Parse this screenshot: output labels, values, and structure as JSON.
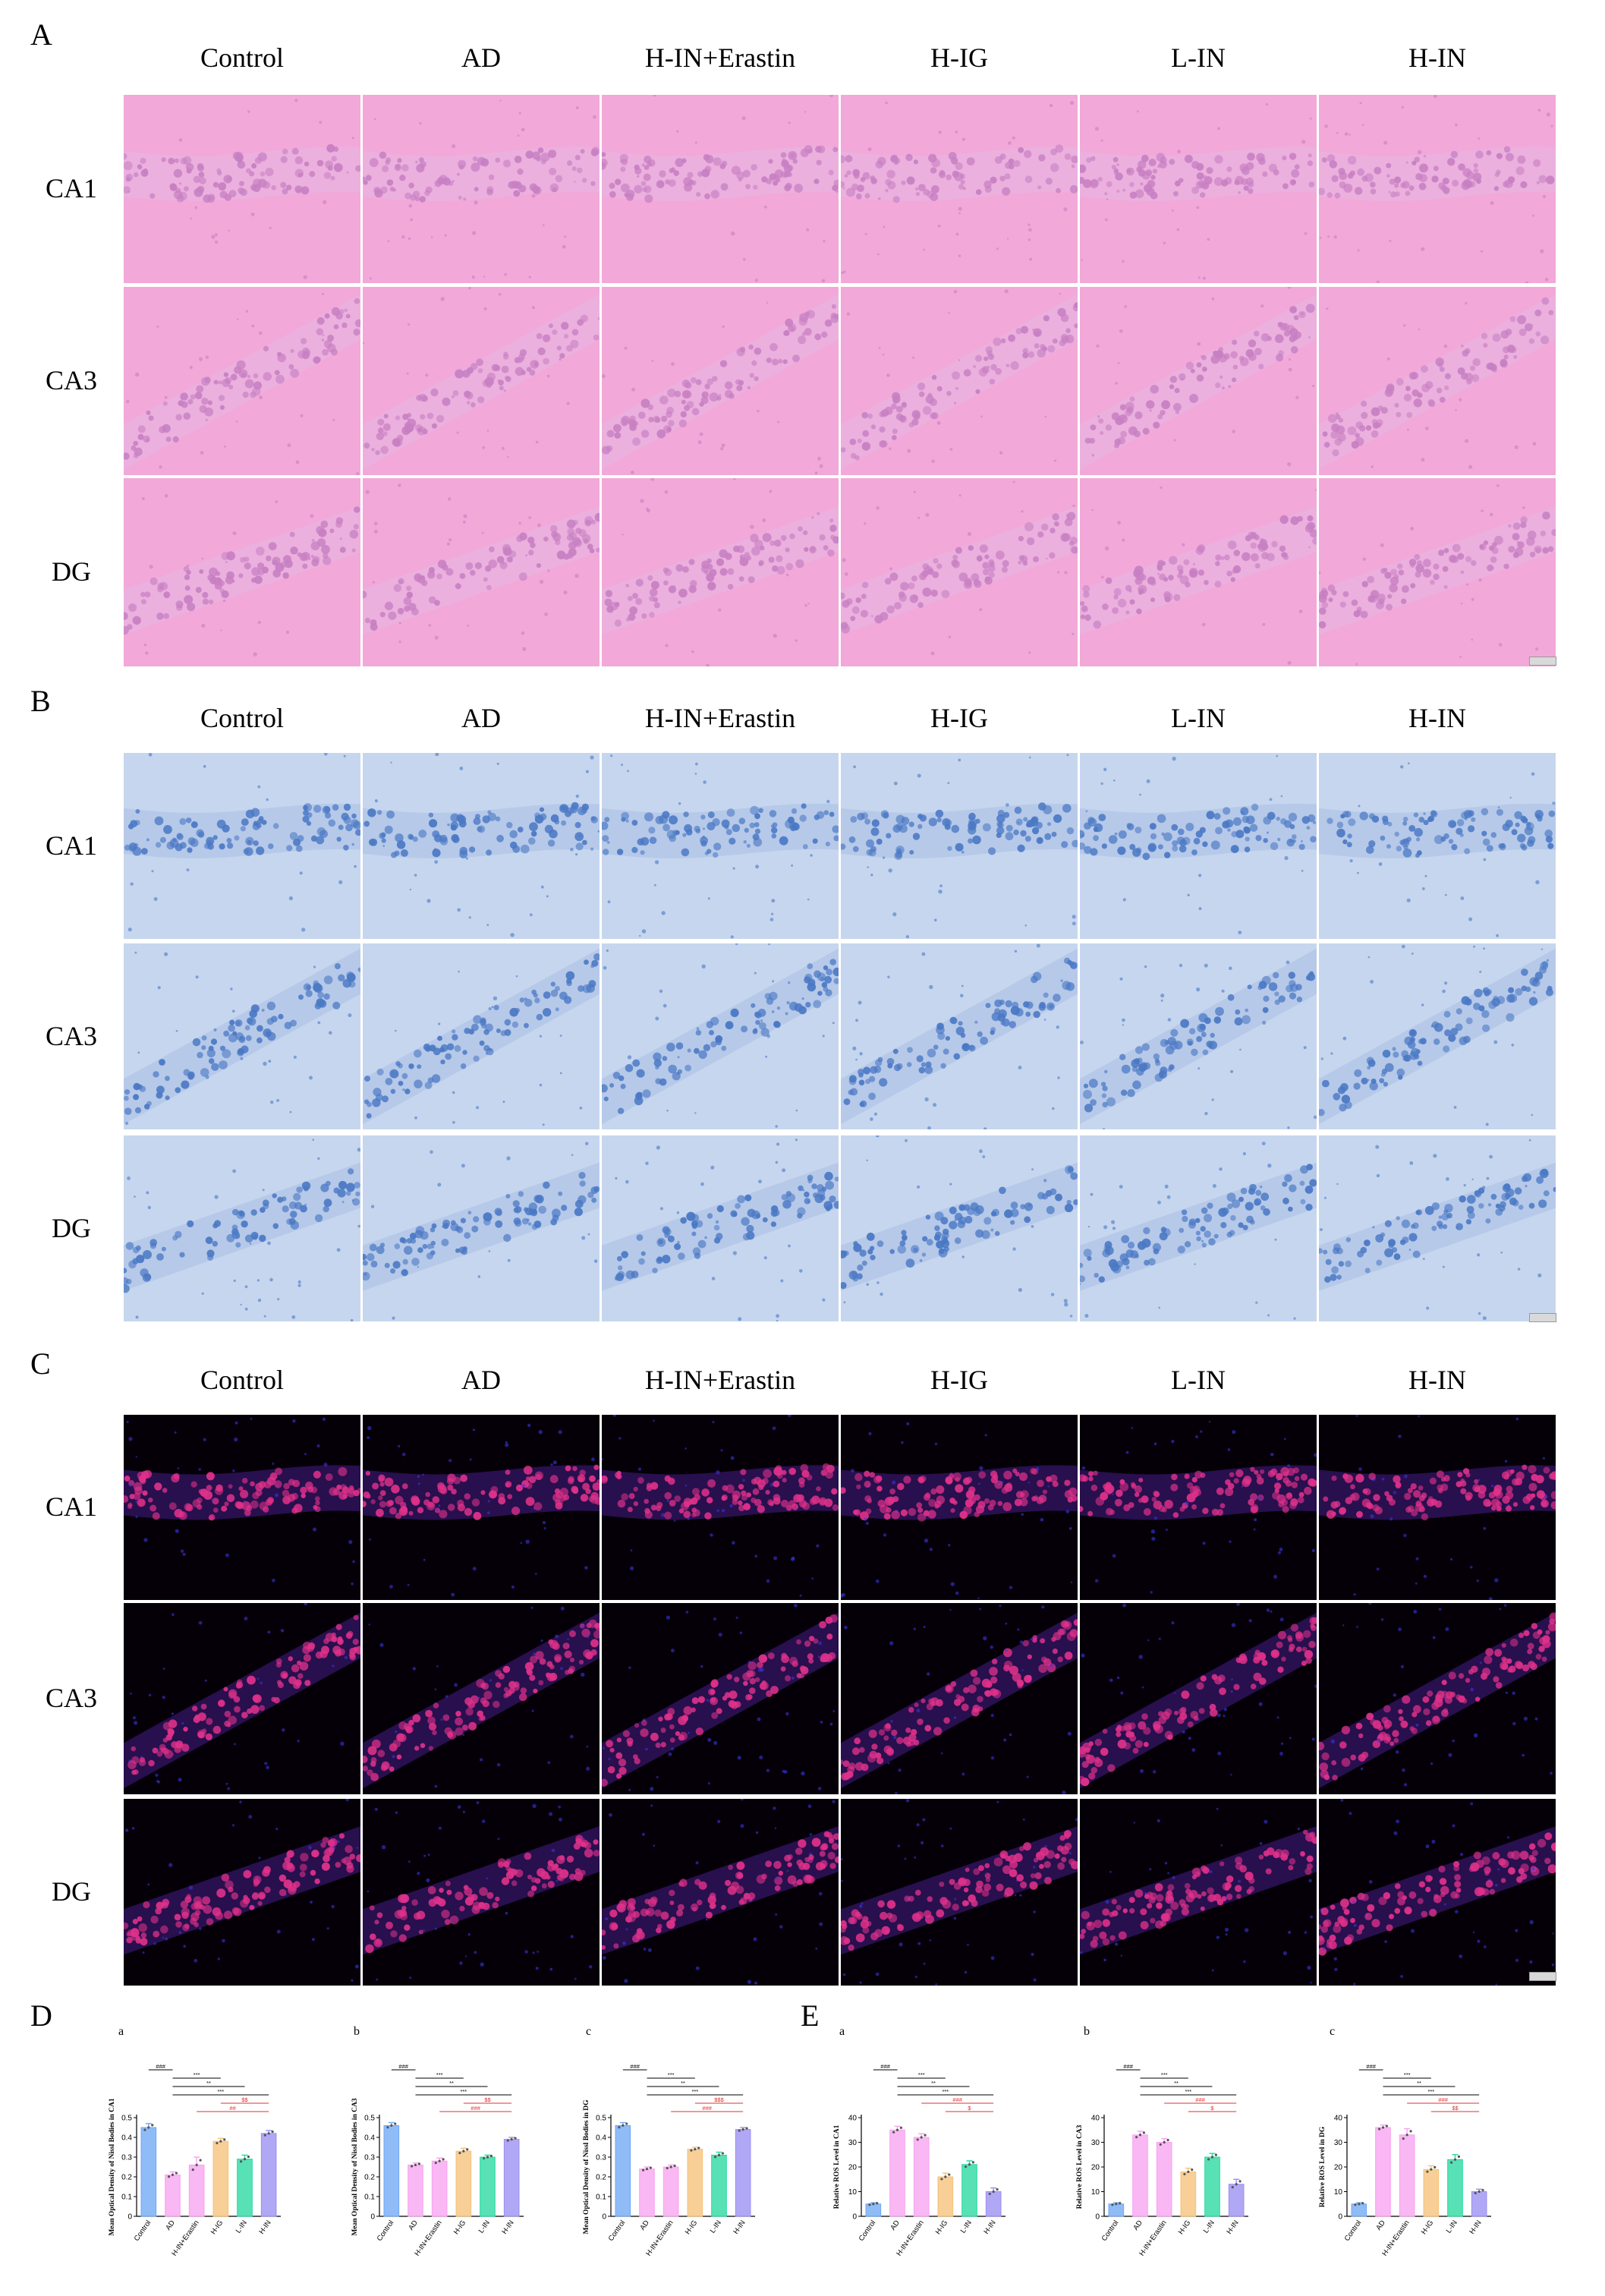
{
  "figure": {
    "panels": [
      {
        "letter": "A",
        "stain": "he"
      },
      {
        "letter": "B",
        "stain": "nissl"
      },
      {
        "letter": "C",
        "stain": "ros"
      }
    ],
    "columns": [
      "Control",
      "AD",
      "H-IN+Erastin",
      "H-IG",
      "L-IN",
      "H-IN"
    ],
    "rows": [
      "CA1",
      "CA3",
      "DG"
    ],
    "colors": {
      "he_bg": "#f2a8d8",
      "he_cell": "#c77fc2",
      "nissl_bg": "#c6d6ee",
      "nissl_cell": "#4a78c4",
      "ros_bg": "#050008",
      "ros_cell": "#e0318a"
    }
  },
  "panel_d": {
    "letter": "D",
    "charts": [
      {
        "sub": "a",
        "ylabel": "Mean Optical Density of Nissl Bodies in CA1"
      },
      {
        "sub": "b",
        "ylabel": "Mean Optical Density of Nissl Bodies in CA3"
      },
      {
        "sub": "c",
        "ylabel": "Mean Optical Density of Nissl Bodies in DG"
      }
    ]
  },
  "panel_e": {
    "letter": "E",
    "charts": [
      {
        "sub": "a",
        "ylabel": "Relative ROS Level in CA1"
      },
      {
        "sub": "b",
        "ylabel": "Relative ROS Level in CA3"
      },
      {
        "sub": "c",
        "ylabel": "Relative ROS Level in DG"
      }
    ]
  },
  "bar_colors": [
    "#6fa8f5",
    "#f7a3f0",
    "#f7a3f0",
    "#f5c27a",
    "#28d8a0",
    "#9a8ff2"
  ],
  "chart_data": [
    {
      "type": "bar",
      "sub": "a",
      "ylabel": "Mean Optical Density of Nissl Bodies in CA1",
      "categories": [
        "Control",
        "AD",
        "H-IN+Erastin",
        "H-IG",
        "L-IN",
        "H-IN"
      ],
      "values": [
        0.45,
        0.21,
        0.26,
        0.38,
        0.29,
        0.42
      ],
      "errors": [
        0.02,
        0.015,
        0.04,
        0.015,
        0.02,
        0.015
      ],
      "ylim": [
        0,
        0.5
      ],
      "yticks": [
        0.0,
        0.1,
        0.2,
        0.3,
        0.4,
        0.5
      ],
      "sig": [
        {
          "from": 0,
          "to": 1,
          "label": "###",
          "color": "#000000"
        },
        {
          "from": 1,
          "to": 3,
          "label": "***",
          "color": "#000000"
        },
        {
          "from": 1,
          "to": 4,
          "label": "**",
          "color": "#000000"
        },
        {
          "from": 1,
          "to": 5,
          "label": "***",
          "color": "#000000"
        },
        {
          "from": 3,
          "to": 5,
          "label": "$$",
          "color": "#e03030"
        },
        {
          "from": 2,
          "to": 5,
          "label": "##",
          "color": "#e03030"
        }
      ]
    },
    {
      "type": "bar",
      "sub": "b",
      "ylabel": "Mean Optical Density of Nissl Bodies in CA3",
      "categories": [
        "Control",
        "AD",
        "H-IN+Erastin",
        "H-IG",
        "L-IN",
        "H-IN"
      ],
      "values": [
        0.46,
        0.26,
        0.28,
        0.33,
        0.3,
        0.39
      ],
      "errors": [
        0.015,
        0.01,
        0.015,
        0.015,
        0.01,
        0.01
      ],
      "ylim": [
        0,
        0.5
      ],
      "yticks": [
        0.0,
        0.1,
        0.2,
        0.3,
        0.4,
        0.5
      ],
      "sig": [
        {
          "from": 0,
          "to": 1,
          "label": "###",
          "color": "#000000"
        },
        {
          "from": 1,
          "to": 3,
          "label": "***",
          "color": "#000000"
        },
        {
          "from": 1,
          "to": 4,
          "label": "**",
          "color": "#000000"
        },
        {
          "from": 1,
          "to": 5,
          "label": "***",
          "color": "#000000"
        },
        {
          "from": 3,
          "to": 5,
          "label": "$$",
          "color": "#e03030"
        },
        {
          "from": 2,
          "to": 5,
          "label": "###",
          "color": "#e03030"
        }
      ]
    },
    {
      "type": "bar",
      "sub": "c",
      "ylabel": "Mean Optical Density of Nissl Bodies in DG",
      "categories": [
        "Control",
        "AD",
        "H-IN+Erastin",
        "H-IG",
        "L-IN",
        "H-IN"
      ],
      "values": [
        0.46,
        0.24,
        0.25,
        0.34,
        0.31,
        0.44
      ],
      "errors": [
        0.015,
        0.01,
        0.01,
        0.01,
        0.015,
        0.01
      ],
      "ylim": [
        0,
        0.5
      ],
      "yticks": [
        0.0,
        0.1,
        0.2,
        0.3,
        0.4,
        0.5
      ],
      "sig": [
        {
          "from": 0,
          "to": 1,
          "label": "###",
          "color": "#000000"
        },
        {
          "from": 1,
          "to": 3,
          "label": "***",
          "color": "#000000"
        },
        {
          "from": 1,
          "to": 4,
          "label": "**",
          "color": "#000000"
        },
        {
          "from": 1,
          "to": 5,
          "label": "***",
          "color": "#000000"
        },
        {
          "from": 3,
          "to": 5,
          "label": "$$$",
          "color": "#e03030"
        },
        {
          "from": 2,
          "to": 5,
          "label": "###",
          "color": "#e03030"
        }
      ]
    },
    {
      "type": "bar",
      "sub": "a",
      "ylabel": "Relative ROS Level in CA1",
      "categories": [
        "Control",
        "AD",
        "H-IN+Erastin",
        "H-IG",
        "L-IN",
        "H-IN"
      ],
      "values": [
        5,
        35,
        32,
        16,
        21,
        10
      ],
      "errors": [
        0.5,
        1.5,
        1.5,
        1.5,
        1.5,
        1.5
      ],
      "ylim": [
        0,
        40
      ],
      "yticks": [
        0,
        10,
        20,
        30,
        40
      ],
      "sig": [
        {
          "from": 0,
          "to": 1,
          "label": "###",
          "color": "#000000"
        },
        {
          "from": 1,
          "to": 3,
          "label": "***",
          "color": "#000000"
        },
        {
          "from": 1,
          "to": 4,
          "label": "**",
          "color": "#000000"
        },
        {
          "from": 1,
          "to": 5,
          "label": "***",
          "color": "#000000"
        },
        {
          "from": 2,
          "to": 5,
          "label": "###",
          "color": "#e03030"
        },
        {
          "from": 3,
          "to": 5,
          "label": "$",
          "color": "#e03030"
        }
      ]
    },
    {
      "type": "bar",
      "sub": "b",
      "ylabel": "Relative ROS Level in CA3",
      "categories": [
        "Control",
        "AD",
        "H-IN+Erastin",
        "H-IG",
        "L-IN",
        "H-IN"
      ],
      "values": [
        5,
        33,
        30,
        18,
        24,
        13
      ],
      "errors": [
        0.5,
        1.5,
        1.5,
        1.5,
        1.5,
        2
      ],
      "ylim": [
        0,
        40
      ],
      "yticks": [
        0,
        10,
        20,
        30,
        40
      ],
      "sig": [
        {
          "from": 0,
          "to": 1,
          "label": "###",
          "color": "#000000"
        },
        {
          "from": 1,
          "to": 3,
          "label": "***",
          "color": "#000000"
        },
        {
          "from": 1,
          "to": 4,
          "label": "**",
          "color": "#000000"
        },
        {
          "from": 1,
          "to": 5,
          "label": "***",
          "color": "#000000"
        },
        {
          "from": 2,
          "to": 5,
          "label": "###",
          "color": "#e03030"
        },
        {
          "from": 3,
          "to": 5,
          "label": "$",
          "color": "#e03030"
        }
      ]
    },
    {
      "type": "bar",
      "sub": "c",
      "ylabel": "Relative ROS Level in DG",
      "categories": [
        "Control",
        "AD",
        "H-IN+Erastin",
        "H-IG",
        "L-IN",
        "H-IN"
      ],
      "values": [
        5,
        36,
        33,
        19,
        23,
        10
      ],
      "errors": [
        0.5,
        1,
        2.5,
        1.5,
        2,
        1
      ],
      "ylim": [
        0,
        40
      ],
      "yticks": [
        0,
        10,
        20,
        30,
        40
      ],
      "sig": [
        {
          "from": 0,
          "to": 1,
          "label": "###",
          "color": "#000000"
        },
        {
          "from": 1,
          "to": 3,
          "label": "***",
          "color": "#000000"
        },
        {
          "from": 1,
          "to": 4,
          "label": "**",
          "color": "#000000"
        },
        {
          "from": 1,
          "to": 5,
          "label": "***",
          "color": "#000000"
        },
        {
          "from": 2,
          "to": 5,
          "label": "###",
          "color": "#e03030"
        },
        {
          "from": 3,
          "to": 5,
          "label": "$$",
          "color": "#e03030"
        }
      ]
    }
  ]
}
